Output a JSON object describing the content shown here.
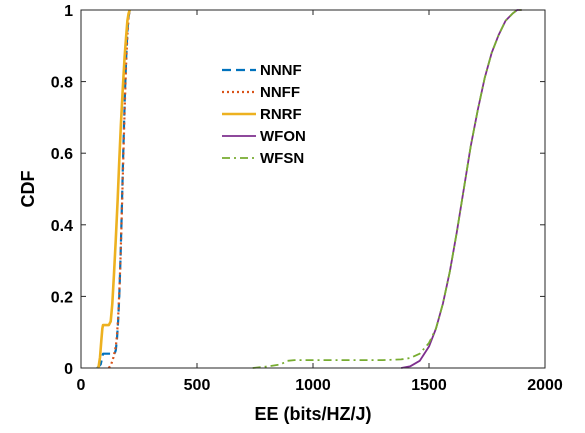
{
  "chart_data": {
    "type": "line",
    "title": "",
    "xlabel": "EE (bits/HZ/J)",
    "ylabel": "CDF",
    "xlim": [
      0,
      2000
    ],
    "ylim": [
      0,
      1
    ],
    "xticks": [
      0,
      500,
      1000,
      1500,
      2000
    ],
    "yticks": [
      0,
      0.2,
      0.4,
      0.6,
      0.8,
      1
    ],
    "xtick_labels": [
      "0",
      "500",
      "1000",
      "1500",
      "2000"
    ],
    "ytick_labels": [
      "0",
      "0.2",
      "0.4",
      "0.6",
      "0.8",
      "1"
    ],
    "grid": false,
    "legend_position": "upper-center",
    "series": [
      {
        "name": "NNNF",
        "color": "#0072BD",
        "line_style": "dashed",
        "x": [
          70,
          85,
          95,
          105,
          120,
          135,
          145,
          150,
          155,
          160,
          165,
          170,
          175,
          180,
          185,
          190,
          195,
          200,
          205,
          210
        ],
        "y": [
          0.0,
          0.01,
          0.04,
          0.04,
          0.04,
          0.04,
          0.04,
          0.05,
          0.08,
          0.13,
          0.2,
          0.3,
          0.42,
          0.55,
          0.67,
          0.78,
          0.87,
          0.94,
          0.98,
          1.0
        ]
      },
      {
        "name": "NNFF",
        "color": "#D95319",
        "line_style": "dotted",
        "x": [
          120,
          130,
          140,
          150,
          155,
          160,
          165,
          170,
          175,
          180,
          185,
          190,
          195,
          200,
          205,
          210
        ],
        "y": [
          0.0,
          0.01,
          0.03,
          0.06,
          0.09,
          0.14,
          0.21,
          0.3,
          0.41,
          0.53,
          0.65,
          0.76,
          0.86,
          0.93,
          0.98,
          1.0
        ]
      },
      {
        "name": "RNRF",
        "color": "#EDB120",
        "line_style": "solid",
        "x": [
          75,
          82,
          88,
          92,
          95,
          100,
          110,
          120,
          128,
          135,
          142,
          150,
          158,
          165,
          172,
          180,
          188,
          195,
          200,
          205,
          210
        ],
        "y": [
          0.0,
          0.03,
          0.08,
          0.11,
          0.12,
          0.12,
          0.12,
          0.12,
          0.13,
          0.18,
          0.26,
          0.36,
          0.47,
          0.58,
          0.68,
          0.78,
          0.87,
          0.93,
          0.97,
          0.99,
          1.0
        ]
      },
      {
        "name": "WFON",
        "color": "#7E2F8E",
        "line_style": "solid",
        "x": [
          1380,
          1420,
          1460,
          1500,
          1530,
          1560,
          1590,
          1620,
          1650,
          1680,
          1710,
          1740,
          1770,
          1800,
          1830,
          1860,
          1880,
          1900
        ],
        "y": [
          0.0,
          0.005,
          0.02,
          0.06,
          0.11,
          0.18,
          0.27,
          0.38,
          0.5,
          0.62,
          0.72,
          0.81,
          0.88,
          0.93,
          0.97,
          0.99,
          1.0,
          1.0
        ]
      },
      {
        "name": "WFSN",
        "color": "#77AC30",
        "line_style": "dash-dot",
        "x": [
          740,
          800,
          860,
          890,
          920,
          960,
          1000,
          1100,
          1200,
          1300,
          1380,
          1420,
          1460,
          1500,
          1530,
          1560,
          1590,
          1620,
          1650,
          1680,
          1710,
          1740,
          1770,
          1800,
          1830,
          1860,
          1880,
          1900
        ],
        "y": [
          0.0,
          0.004,
          0.01,
          0.02,
          0.022,
          0.022,
          0.022,
          0.022,
          0.022,
          0.022,
          0.024,
          0.028,
          0.04,
          0.07,
          0.11,
          0.18,
          0.27,
          0.38,
          0.5,
          0.62,
          0.72,
          0.81,
          0.88,
          0.93,
          0.97,
          0.99,
          1.0,
          1.0
        ]
      }
    ]
  }
}
